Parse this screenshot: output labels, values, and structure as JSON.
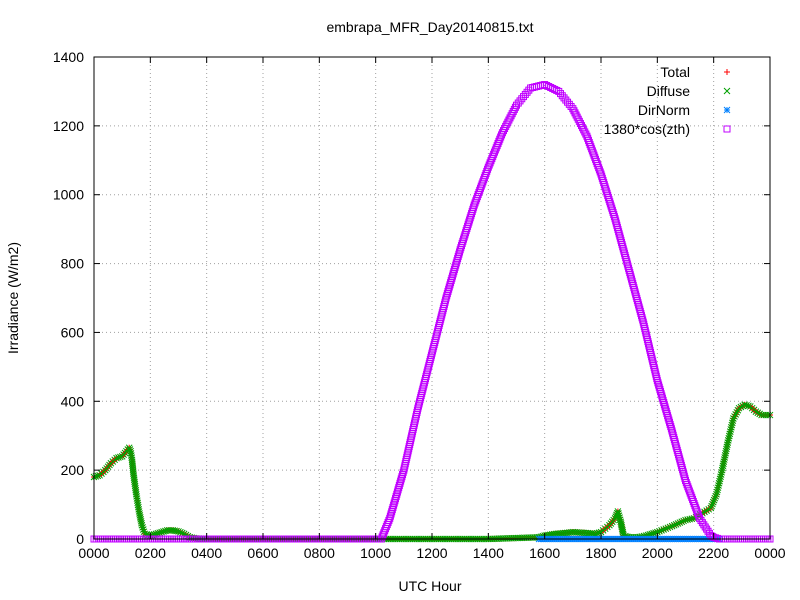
{
  "chart_data": {
    "type": "scatter",
    "title": "embrapa_MFR_Day20140815.txt",
    "xlabel": "UTC Hour",
    "ylabel": "Irradiance (W/m2)",
    "xlim": [
      0,
      24
    ],
    "ylim": [
      0,
      1400
    ],
    "grid": true,
    "legend_position": "top-right",
    "x_tick_labels": [
      "0000",
      "0200",
      "0400",
      "0600",
      "0800",
      "1000",
      "1200",
      "1400",
      "1600",
      "1800",
      "2000",
      "2200",
      "0000"
    ],
    "y_tick_labels": [
      "0",
      "200",
      "400",
      "600",
      "800",
      "1000",
      "1200",
      "1400"
    ],
    "y_tick_values": [
      0,
      200,
      400,
      600,
      800,
      1000,
      1200,
      1400
    ],
    "series": [
      {
        "name": "Total",
        "color": "#ff0000",
        "marker": "plus",
        "x": [
          0.0,
          0.2,
          0.4,
          0.6,
          0.8,
          1.0,
          1.2,
          1.25,
          1.3,
          1.35,
          1.4,
          1.5,
          1.6,
          1.7,
          1.8,
          2.0,
          2.2,
          2.4,
          2.6,
          2.8,
          3.0,
          3.2,
          3.4,
          3.6,
          3.8,
          4.0,
          6.0,
          8.0,
          10.0,
          12.0,
          14.0,
          15.8,
          16.0,
          16.4,
          16.8,
          17.0,
          17.4,
          17.8,
          18.0,
          18.3,
          18.5,
          18.6,
          18.7,
          18.75,
          18.8,
          19.0,
          19.3,
          19.6,
          20.0,
          20.3,
          20.6,
          21.0,
          21.3,
          21.6,
          21.9,
          22.1,
          22.3,
          22.5,
          22.7,
          22.9,
          23.1,
          23.3,
          23.5,
          23.7,
          24.0
        ],
        "y": [
          180,
          185,
          200,
          220,
          235,
          240,
          260,
          265,
          255,
          230,
          190,
          130,
          80,
          40,
          15,
          10,
          15,
          20,
          25,
          25,
          22,
          15,
          5,
          2,
          1,
          0,
          0,
          0,
          0,
          0,
          0,
          5,
          10,
          15,
          18,
          20,
          18,
          15,
          20,
          40,
          60,
          80,
          50,
          30,
          10,
          5,
          5,
          10,
          20,
          30,
          40,
          55,
          60,
          75,
          90,
          130,
          200,
          280,
          350,
          380,
          390,
          385,
          370,
          360,
          360
        ]
      },
      {
        "name": "Diffuse",
        "color": "#00a000",
        "marker": "x",
        "x": [
          0.0,
          0.2,
          0.4,
          0.6,
          0.8,
          1.0,
          1.2,
          1.25,
          1.3,
          1.35,
          1.4,
          1.5,
          1.6,
          1.7,
          1.8,
          2.0,
          2.2,
          2.4,
          2.6,
          2.8,
          3.0,
          3.2,
          3.4,
          3.6,
          3.8,
          4.0,
          6.0,
          8.0,
          10.0,
          12.0,
          14.0,
          15.8,
          16.0,
          16.4,
          16.8,
          17.0,
          17.4,
          17.8,
          18.0,
          18.3,
          18.5,
          18.6,
          18.7,
          18.75,
          18.8,
          19.0,
          19.3,
          19.6,
          20.0,
          20.3,
          20.6,
          21.0,
          21.3,
          21.6,
          21.9,
          22.1,
          22.3,
          22.5,
          22.7,
          22.9,
          23.1,
          23.3,
          23.5,
          23.7,
          24.0
        ],
        "y": [
          180,
          185,
          200,
          220,
          235,
          240,
          260,
          265,
          255,
          230,
          190,
          130,
          80,
          40,
          15,
          10,
          15,
          20,
          25,
          25,
          22,
          15,
          5,
          2,
          1,
          0,
          0,
          0,
          0,
          0,
          0,
          5,
          10,
          15,
          18,
          20,
          18,
          15,
          20,
          40,
          60,
          80,
          50,
          30,
          10,
          5,
          5,
          10,
          20,
          30,
          40,
          55,
          60,
          75,
          90,
          130,
          200,
          280,
          350,
          380,
          390,
          385,
          370,
          360,
          360
        ]
      },
      {
        "name": "DirNorm",
        "color": "#0080ff",
        "marker": "star",
        "x": [
          15.8,
          16.0,
          16.5,
          17.0,
          17.5,
          18.0,
          18.5,
          19.0,
          19.5,
          20.0,
          20.5,
          21.0,
          21.5,
          22.0,
          22.2
        ],
        "y": [
          0,
          0,
          0,
          0,
          0,
          0,
          0,
          0,
          0,
          0,
          0,
          0,
          0,
          0,
          0
        ]
      },
      {
        "name": "1380*cos(zth)",
        "color": "#c000ff",
        "marker": "square",
        "x": [
          0.0,
          2.0,
          4.0,
          6.0,
          8.0,
          10.0,
          10.2,
          10.5,
          11.0,
          11.5,
          12.0,
          12.5,
          13.0,
          13.5,
          14.0,
          14.5,
          15.0,
          15.5,
          16.0,
          16.5,
          17.0,
          17.5,
          18.0,
          18.5,
          19.0,
          19.5,
          20.0,
          20.5,
          21.0,
          21.5,
          21.9,
          22.0,
          22.2,
          24.0
        ],
        "y": [
          0,
          0,
          0,
          0,
          0,
          0,
          0,
          60,
          200,
          380,
          540,
          700,
          840,
          970,
          1080,
          1180,
          1260,
          1310,
          1320,
          1300,
          1250,
          1170,
          1060,
          930,
          780,
          630,
          460,
          320,
          170,
          60,
          10,
          5,
          0,
          0
        ]
      }
    ]
  }
}
